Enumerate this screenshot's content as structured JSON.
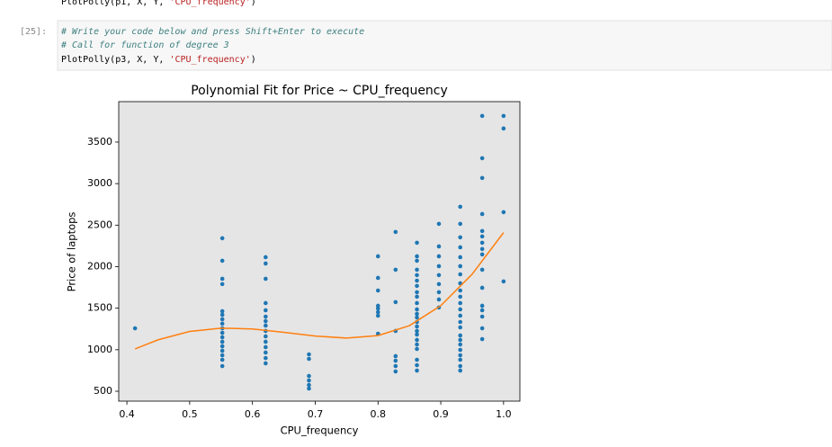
{
  "notebook": {
    "prev_line": [
      "PlotPolly(p1, X, Y, ",
      "'CPU_frequency'",
      ")"
    ],
    "prompt": "[25]:",
    "code": {
      "comment1": "#  Write your code below and press Shift+Enter to execute",
      "comment2": "# Call for function of degree 3",
      "call": [
        "PlotPolly(p3, X, Y, ",
        "'CPU_frequency'",
        ")"
      ]
    }
  },
  "chart_data": {
    "type": "scatter",
    "title": "Polynomial Fit for Price ~ CPU_frequency",
    "x_label": "CPU_frequency",
    "y_label": "Price of laptops",
    "xlim": [
      0.387,
      1.026
    ],
    "ylim": [
      381,
      3987
    ],
    "xticks": [
      0.4,
      0.5,
      0.6,
      0.7,
      0.8,
      0.9,
      {
        "value": 1,
        "label": "1.0"
      }
    ],
    "yticks": [
      500,
      1000,
      1500,
      2000,
      2500,
      3000,
      3500
    ],
    "background": "#e5e5e5",
    "series": [
      {
        "color": "#1f77b4",
        "x": [
          0.413,
          0.552,
          0.552,
          0.552,
          0.552,
          0.552,
          0.552,
          0.552,
          0.552,
          0.552,
          0.552,
          0.552,
          0.552,
          0.552,
          0.552,
          0.552,
          0.552,
          0.552,
          0.621,
          0.621,
          0.621,
          0.621,
          0.621,
          0.621,
          0.621,
          0.621,
          0.621,
          0.621,
          0.621,
          0.621,
          0.621,
          0.621,
          0.621,
          0.69,
          0.69,
          0.69,
          0.69,
          0.69,
          0.69,
          0.8,
          0.8,
          0.8,
          0.8,
          0.8,
          0.8,
          0.8,
          0.8,
          0.828,
          0.828,
          0.828,
          0.828,
          0.828,
          0.828,
          0.828,
          0.828,
          0.862,
          0.862,
          0.862,
          0.862,
          0.862,
          0.862,
          0.862,
          0.862,
          0.862,
          0.862,
          0.862,
          0.862,
          0.862,
          0.862,
          0.862,
          0.862,
          0.862,
          0.862,
          0.862,
          0.862,
          0.862,
          0.862,
          0.862,
          0.897,
          0.897,
          0.897,
          0.897,
          0.897,
          0.897,
          0.897,
          0.897,
          0.897,
          0.931,
          0.931,
          0.931,
          0.931,
          0.931,
          0.931,
          0.931,
          0.931,
          0.931,
          0.931,
          0.931,
          0.931,
          0.931,
          0.931,
          0.931,
          0.931,
          0.931,
          0.931,
          0.931,
          0.931,
          0.931,
          0.931,
          0.931,
          0.966,
          0.966,
          0.966,
          0.966,
          0.966,
          0.966,
          0.966,
          0.966,
          0.966,
          0.966,
          0.966,
          0.966,
          0.966,
          0.966,
          0.966,
          0.966,
          1.0,
          1.0,
          1.0,
          1.0
        ],
        "values": [
          1258,
          2342,
          2071,
          1854,
          1790,
          1464,
          1421,
          1367,
          1313,
          1258,
          1204,
          1150,
          1096,
          1042,
          988,
          933,
          879,
          803,
          2114,
          2038,
          1854,
          1562,
          1475,
          1399,
          1345,
          1291,
          1226,
          1161,
          1096,
          1031,
          966,
          900,
          836,
          944,
          890,
          684,
          630,
          576,
          533,
          2125,
          1865,
          1713,
          1529,
          1497,
          1453,
          1410,
          1193,
          2418,
          1963,
          1573,
          1226,
          923,
          868,
          803,
          738,
          2288,
          2125,
          2071,
          1963,
          1898,
          1832,
          1768,
          1692,
          1638,
          1562,
          1486,
          1432,
          1388,
          1334,
          1280,
          1226,
          1183,
          1118,
          1063,
          1009,
          879,
          814,
          749,
          2515,
          2244,
          2125,
          2006,
          1898,
          1790,
          1692,
          1605,
          1508,
          2721,
          2515,
          2353,
          2233,
          2114,
          2006,
          1908,
          1800,
          1713,
          1638,
          1562,
          1486,
          1410,
          1334,
          1269,
          1172,
          1118,
          1063,
          998,
          933,
          879,
          803,
          749,
          3815,
          3306,
          3068,
          2634,
          2429,
          2364,
          2288,
          2212,
          2147,
          1963,
          1746,
          1529,
          1475,
          1399,
          1258,
          1128,
          3815,
          3664,
          2656,
          1822
        ]
      },
      {
        "type": "line",
        "color": "#ff7f0e",
        "x": [
          0.413,
          0.45,
          0.5,
          0.55,
          0.6,
          0.65,
          0.7,
          0.75,
          0.8,
          0.85,
          0.9,
          0.95,
          1.0
        ],
        "values": [
          1010,
          1120,
          1220,
          1260,
          1250,
          1210,
          1165,
          1140,
          1170,
          1290,
          1530,
          1910,
          2410
        ]
      }
    ]
  }
}
